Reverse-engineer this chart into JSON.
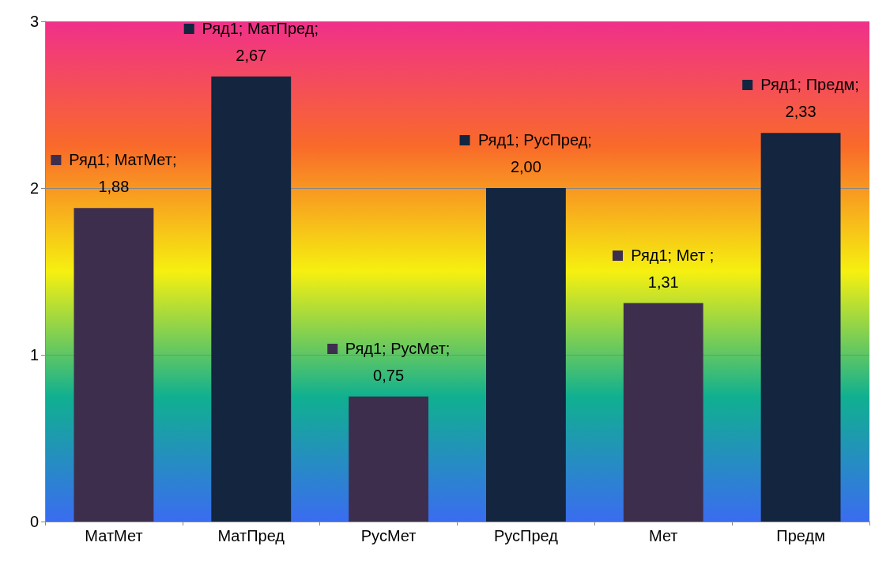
{
  "chart_data": {
    "type": "bar",
    "categories": [
      "МатМет",
      "МатПред",
      "РусМет",
      "РусПред",
      "Мет",
      "Предм"
    ],
    "series": [
      {
        "values": [
          1.88,
          2.67,
          0.75,
          2.0,
          1.31,
          2.33
        ],
        "colors": [
          "#3e2e4e",
          "#13253f",
          "#3e2e4e",
          "#13253f",
          "#3e2e4e",
          "#13253f"
        ],
        "value_labels": [
          "Ряд1; МатМет;\n1,88",
          "Ряд1; МатПред;\n2,67",
          "Ряд1; РусМет;\n0,75",
          "Ряд1; РусПред;\n2,00",
          "Ряд1; Мет ;\n1,31",
          "Ряд1; Предм;\n2,33"
        ]
      }
    ],
    "ylim": [
      0,
      3
    ],
    "yticks": [
      0,
      1,
      2,
      3
    ],
    "grid": "y"
  }
}
